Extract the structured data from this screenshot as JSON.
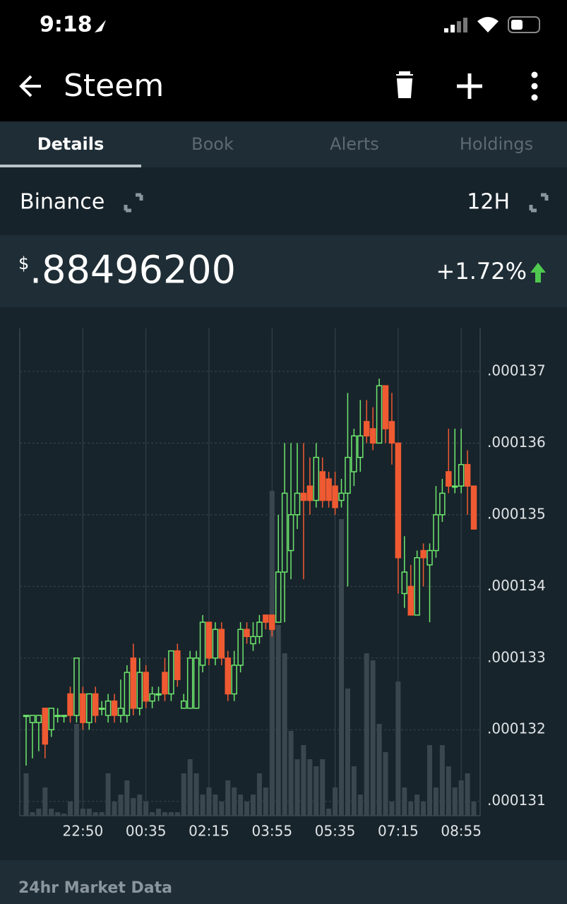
{
  "status": {
    "time": "9:18"
  },
  "header": {
    "title": "Steem"
  },
  "tabs": [
    "Details",
    "Book",
    "Alerts",
    "Holdings"
  ],
  "exchange": "Binance",
  "interval": "12H",
  "price": {
    "currency": "$",
    "value": ".88496200",
    "change": "+1.72%"
  },
  "footer": "24hr Market Data",
  "chart_data": {
    "type": "candlestick",
    "up_color": "#6ee86e",
    "down_color": "#f05a32",
    "volume_color": "#3b474f",
    "categories": [
      null,
      null,
      null,
      null,
      null,
      null,
      null,
      null,
      null,
      "22:50",
      null,
      null,
      null,
      null,
      null,
      null,
      null,
      null,
      null,
      "00:35",
      null,
      null,
      null,
      null,
      null,
      null,
      null,
      null,
      null,
      "02:15",
      null,
      null,
      null,
      null,
      null,
      null,
      null,
      null,
      null,
      "03:55",
      null,
      null,
      null,
      null,
      null,
      null,
      null,
      null,
      null,
      "05:35",
      null,
      null,
      null,
      null,
      null,
      null,
      null,
      null,
      null,
      "07:15",
      null,
      null,
      null,
      null,
      null,
      null,
      null,
      null,
      null,
      "08:55",
      null,
      null
    ],
    "open": [
      0.0001322,
      0.0001321,
      0.0001321,
      0.0001323,
      0.000132,
      0.0001322,
      0.0001322,
      0.0001325,
      0.0001322,
      0.0001325,
      0.0001321,
      0.0001325,
      0.0001323,
      0.0001322,
      0.0001324,
      0.0001322,
      0.0001322,
      0.000133,
      0.0001323,
      0.0001328,
      0.0001324,
      0.0001325,
      0.0001328,
      0.0001325,
      0.0001331,
      0.0001323,
      0.0001323,
      0.0001323,
      0.0001329,
      0.0001335,
      0.000133,
      0.0001334,
      0.000133,
      0.0001325,
      0.0001329,
      0.0001334,
      0.0001332,
      0.0001333,
      0.0001336,
      0.0001336,
      0.0001335,
      0.0001342,
      0.0001345,
      0.000135,
      0.0001353,
      0.0001354,
      0.0001352,
      0.0001356,
      0.0001355,
      0.0001354,
      0.0001352,
      0.0001353,
      0.0001356,
      0.0001358,
      0.0001363,
      0.0001362,
      0.000136,
      0.0001368,
      0.0001363,
      0.000136,
      0.0001339,
      0.000134,
      0.0001336,
      0.0001345,
      0.0001343,
      0.0001345,
      0.000135,
      0.0001356,
      0.0001354,
      0.0001354,
      0.0001357,
      0.0001354
    ],
    "high": [
      0.0001322,
      0.0001322,
      0.0001322,
      0.0001323,
      0.0001323,
      0.0001323,
      0.0001322,
      0.0001326,
      0.000133,
      0.0001326,
      0.0001325,
      0.0001326,
      0.0001324,
      0.0001325,
      0.0001325,
      0.0001327,
      0.0001329,
      0.0001332,
      0.000133,
      0.0001329,
      0.0001326,
      0.0001326,
      0.000133,
      0.0001331,
      0.0001332,
      0.0001325,
      0.0001331,
      0.0001331,
      0.0001336,
      0.0001335,
      0.0001335,
      0.0001335,
      0.0001331,
      0.0001331,
      0.0001335,
      0.0001335,
      0.0001335,
      0.0001336,
      0.0001336,
      0.0001336,
      0.000135,
      0.000136,
      0.000136,
      0.000136,
      0.000136,
      0.0001358,
      0.000136,
      0.0001358,
      0.0001356,
      0.0001356,
      0.0001355,
      0.0001367,
      0.0001362,
      0.0001366,
      0.0001366,
      0.0001365,
      0.0001369,
      0.0001368,
      0.0001367,
      0.000136,
      0.0001347,
      0.0001343,
      0.0001345,
      0.0001346,
      0.0001346,
      0.0001354,
      0.0001355,
      0.0001362,
      0.0001362,
      0.0001362,
      0.0001359,
      0.0001354
    ],
    "low": [
      0.0001315,
      0.0001316,
      0.0001317,
      0.0001316,
      0.0001319,
      0.0001321,
      0.0001321,
      0.0001321,
      0.0001321,
      0.000132,
      0.000132,
      0.0001321,
      0.0001322,
      0.0001321,
      0.0001321,
      0.0001321,
      0.0001321,
      0.0001322,
      0.0001322,
      0.0001323,
      0.0001323,
      0.0001324,
      0.0001324,
      0.0001324,
      0.0001326,
      0.0001323,
      0.0001323,
      0.0001323,
      0.0001328,
      0.0001329,
      0.0001329,
      0.0001329,
      0.0001324,
      0.0001324,
      0.0001328,
      0.0001332,
      0.0001331,
      0.0001332,
      0.0001334,
      0.0001333,
      0.0001335,
      0.0001335,
      0.0001341,
      0.0001348,
      0.0001341,
      0.000135,
      0.0001351,
      0.0001351,
      0.0001351,
      0.000135,
      0.0001351,
      0.000134,
      0.0001354,
      0.0001356,
      0.000136,
      0.0001359,
      0.000136,
      0.000136,
      0.0001357,
      0.0001339,
      0.0001337,
      0.0001336,
      0.0001336,
      0.000134,
      0.0001335,
      0.0001344,
      0.0001349,
      0.0001353,
      0.0001353,
      0.0001353,
      0.000135,
      0.0001348
    ],
    "close": [
      0.0001322,
      0.0001322,
      0.0001322,
      0.0001318,
      0.0001323,
      0.0001322,
      0.0001322,
      0.0001322,
      0.000133,
      0.0001321,
      0.0001325,
      0.0001322,
      0.0001323,
      0.0001324,
      0.0001322,
      0.0001323,
      0.0001328,
      0.0001323,
      0.0001328,
      0.0001324,
      0.0001325,
      0.0001325,
      0.0001325,
      0.0001331,
      0.0001327,
      0.0001324,
      0.000133,
      0.000133,
      0.0001335,
      0.000133,
      0.0001334,
      0.000133,
      0.0001325,
      0.0001329,
      0.0001334,
      0.0001333,
      0.0001333,
      0.0001335,
      0.0001335,
      0.0001334,
      0.0001342,
      0.0001353,
      0.000135,
      0.0001353,
      0.0001352,
      0.0001352,
      0.0001358,
      0.0001352,
      0.0001352,
      0.0001351,
      0.0001353,
      0.0001358,
      0.0001361,
      0.0001361,
      0.0001361,
      0.000136,
      0.0001368,
      0.0001362,
      0.000136,
      0.0001344,
      0.0001342,
      0.0001336,
      0.0001344,
      0.0001344,
      0.0001345,
      0.000135,
      0.0001353,
      0.0001354,
      0.0001354,
      0.0001357,
      0.0001354,
      0.0001348
    ],
    "volume": [
      60,
      5,
      10,
      40,
      10,
      5,
      3,
      20,
      130,
      10,
      10,
      5,
      5,
      60,
      20,
      30,
      50,
      25,
      30,
      20,
      5,
      10,
      5,
      5,
      5,
      60,
      80,
      60,
      30,
      40,
      30,
      20,
      50,
      40,
      30,
      20,
      30,
      60,
      40,
      460,
      270,
      230,
      120,
      80,
      100,
      80,
      70,
      80,
      10,
      40,
      420,
      180,
      70,
      30,
      230,
      220,
      130,
      90,
      20,
      190,
      40,
      20,
      30,
      20,
      100,
      40,
      100,
      70,
      40,
      50,
      60,
      20
    ],
    "ylim": [
      0.0001308,
      0.0001376
    ],
    "yticks": [
      {
        "value": 0.000131,
        "label": ".000131"
      },
      {
        "value": 0.000132,
        "label": ".000132"
      },
      {
        "value": 0.000133,
        "label": ".000133"
      },
      {
        "value": 0.000134,
        "label": ".000134"
      },
      {
        "value": 0.000135,
        "label": ".000135"
      },
      {
        "value": 0.000136,
        "label": ".000136"
      },
      {
        "value": 0.000137,
        "label": ".000137"
      }
    ],
    "grid": true
  }
}
